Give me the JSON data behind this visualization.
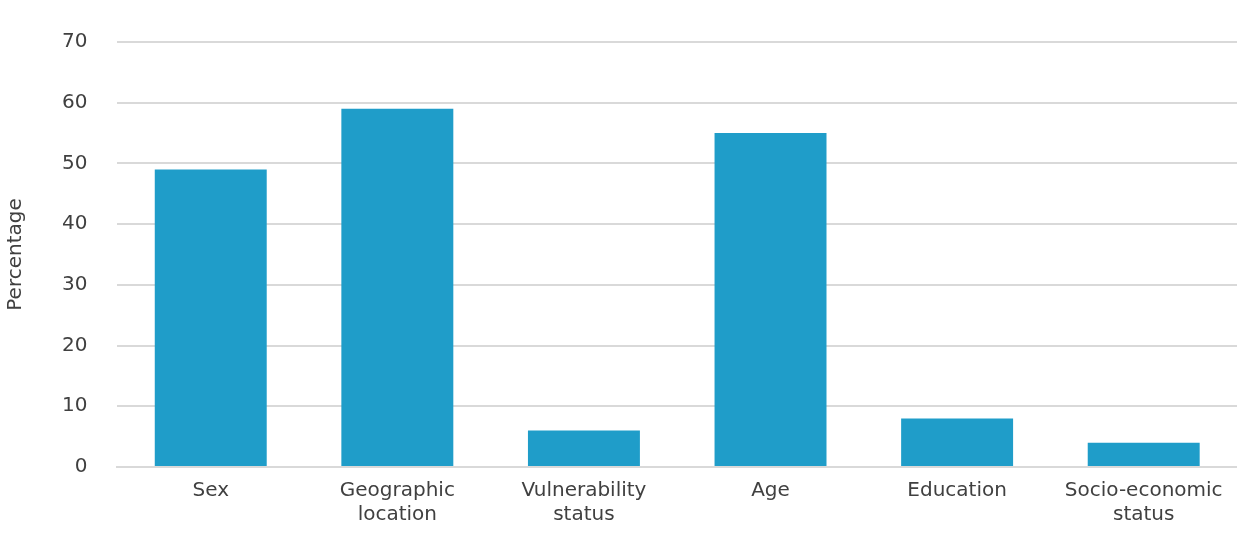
{
  "chart_data": {
    "type": "bar",
    "ylabel": "Percentage",
    "categories": [
      "Sex",
      "Geographic location",
      "Vulnerability status",
      "Age",
      "Education",
      "Socio-economic status"
    ],
    "values": [
      49,
      59,
      6,
      55,
      8,
      4
    ],
    "color": "#1f9dc9",
    "ylim": [
      0,
      70
    ],
    "yticks": [
      0,
      10,
      20,
      30,
      40,
      50,
      60,
      70
    ],
    "grid": "y",
    "legend": false
  }
}
